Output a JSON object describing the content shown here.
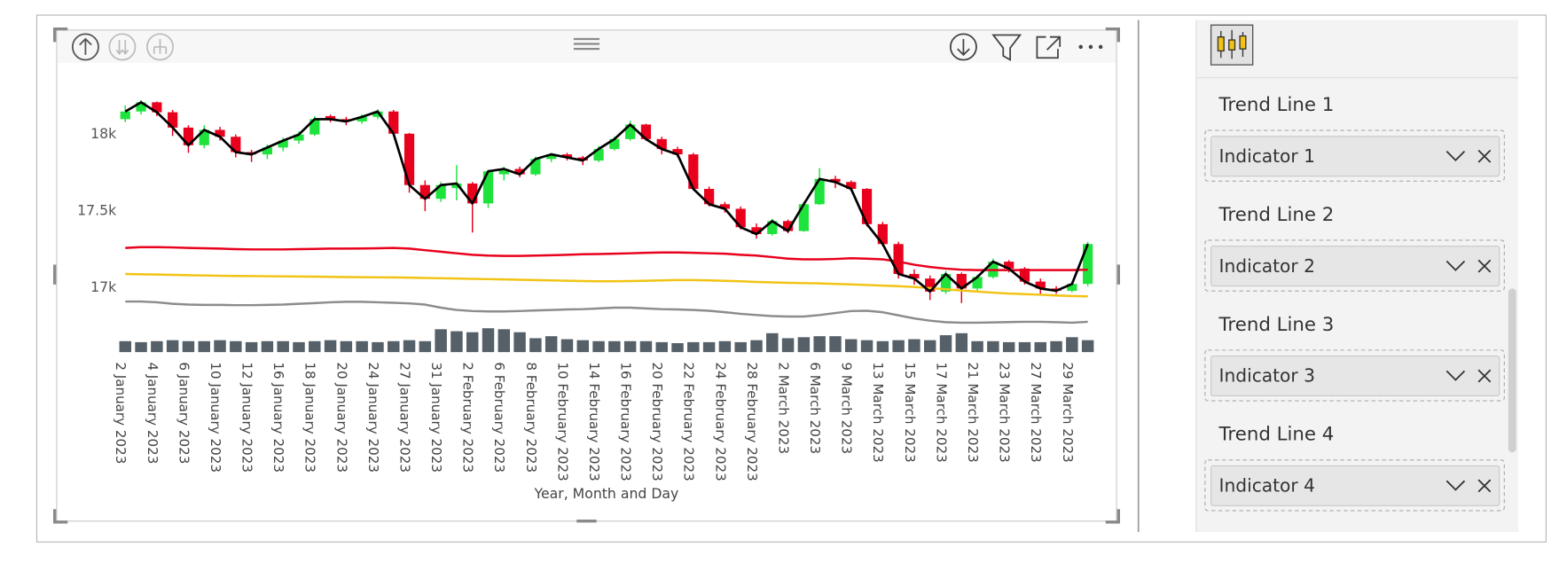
{
  "chart_data": {
    "type": "candlestick",
    "x_label": "Year, Month and Day",
    "categories": [
      "2 January 2023",
      null,
      "4 January 2023",
      null,
      "6 January 2023",
      null,
      "10 January 2023",
      null,
      "12 January 2023",
      null,
      "16 January 2023",
      null,
      "18 January 2023",
      null,
      "20 January 2023",
      null,
      "24 January 2023",
      null,
      "27 January 2023",
      null,
      "31 January 2023",
      null,
      "2 February 2023",
      null,
      "6 February 2023",
      null,
      "8 February 2023",
      null,
      "10 February 2023",
      null,
      "14 February 2023",
      null,
      "16 February 2023",
      null,
      "20 February 2023",
      null,
      "22 February 2023",
      null,
      "24 February 2023",
      null,
      "28 February 2023",
      null,
      "2 March 2023",
      null,
      "6 March 2023",
      null,
      "9 March 2023",
      null,
      "13 March 2023",
      null,
      "15 March 2023",
      null,
      "17 March 2023",
      null,
      "21 March 2023",
      null,
      "23 March 2023",
      null,
      "27 March 2023",
      null,
      "29 March 2023",
      null
    ],
    "open": [
      18100,
      18150,
      18210,
      18145,
      18045,
      17930,
      18030,
      17985,
      17885,
      17870,
      17915,
      17960,
      18000,
      18120,
      18100,
      18085,
      18115,
      18150,
      18005,
      17670,
      17580,
      17650,
      17680,
      17550,
      17740,
      17775,
      17740,
      17840,
      17870,
      17850,
      17830,
      17905,
      17970,
      18065,
      17970,
      17905,
      17870,
      17645,
      17545,
      17515,
      17395,
      17350,
      17435,
      17370,
      17545,
      17710,
      17690,
      17645,
      17415,
      17285,
      17090,
      17060,
      16975,
      17090,
      16995,
      17070,
      17170,
      17125,
      17040,
      16995,
      16980,
      17025
    ],
    "high": [
      18190,
      18225,
      18215,
      18160,
      18060,
      18060,
      18050,
      18000,
      17900,
      17935,
      17980,
      18020,
      18120,
      18130,
      18115,
      18130,
      18165,
      18160,
      18010,
      17700,
      17690,
      17800,
      17690,
      17770,
      17790,
      17790,
      17855,
      17880,
      17880,
      17860,
      17925,
      17985,
      18090,
      18070,
      17985,
      17920,
      17880,
      17660,
      17560,
      17530,
      17420,
      17450,
      17445,
      17560,
      17780,
      17730,
      17700,
      17650,
      17430,
      17300,
      17120,
      17080,
      17110,
      17100,
      17085,
      17190,
      17180,
      17135,
      17060,
      17010,
      17040,
      17300
    ],
    "low": [
      18080,
      18130,
      18120,
      17990,
      17880,
      17910,
      17960,
      17850,
      17820,
      17840,
      17890,
      17940,
      17990,
      18080,
      18060,
      18070,
      18100,
      17990,
      17620,
      17500,
      17560,
      17570,
      17360,
      17520,
      17700,
      17720,
      17730,
      17820,
      17830,
      17800,
      17820,
      17895,
      17960,
      17960,
      17870,
      17850,
      17640,
      17530,
      17490,
      17380,
      17320,
      17340,
      17355,
      17365,
      17540,
      17650,
      17630,
      17400,
      17270,
      17060,
      17020,
      16920,
      16960,
      16900,
      16980,
      17060,
      17100,
      17020,
      16960,
      16960,
      16970,
      17010
    ],
    "close": [
      18150,
      18210,
      18145,
      18045,
      17930,
      18030,
      17985,
      17885,
      17870,
      17915,
      17960,
      18000,
      18100,
      18100,
      18085,
      18115,
      18150,
      18005,
      17670,
      17580,
      17670,
      17680,
      17550,
      17760,
      17775,
      17740,
      17840,
      17870,
      17850,
      17830,
      17905,
      17970,
      18065,
      17970,
      17905,
      17870,
      17645,
      17545,
      17515,
      17395,
      17350,
      17435,
      17370,
      17545,
      17710,
      17690,
      17645,
      17415,
      17285,
      17090,
      17060,
      16975,
      17090,
      16995,
      17070,
      17170,
      17125,
      17040,
      16995,
      16980,
      17025,
      17285
    ],
    "up_color": "#1ee33c",
    "down_color": "#e8001c",
    "lines": [
      {
        "color": "#000000",
        "values": [
          18150,
          18210,
          18145,
          18045,
          17930,
          18030,
          17985,
          17885,
          17870,
          17915,
          17960,
          18000,
          18100,
          18100,
          18085,
          18115,
          18150,
          18005,
          17670,
          17580,
          17670,
          17680,
          17550,
          17760,
          17775,
          17740,
          17840,
          17870,
          17850,
          17830,
          17905,
          17970,
          18065,
          17970,
          17905,
          17870,
          17645,
          17545,
          17515,
          17395,
          17350,
          17435,
          17370,
          17545,
          17710,
          17690,
          17645,
          17415,
          17285,
          17090,
          17060,
          16975,
          17090,
          16995,
          17070,
          17170,
          17125,
          17040,
          16995,
          16980,
          17025,
          17285
        ]
      },
      {
        "color": "#e8001c",
        "values": [
          17260,
          17265,
          17265,
          17263,
          17260,
          17258,
          17255,
          17252,
          17250,
          17250,
          17250,
          17252,
          17253,
          17255,
          17255,
          17256,
          17258,
          17260,
          17255,
          17245,
          17235,
          17225,
          17215,
          17210,
          17208,
          17208,
          17210,
          17212,
          17215,
          17218,
          17220,
          17222,
          17225,
          17228,
          17230,
          17230,
          17228,
          17225,
          17222,
          17215,
          17210,
          17200,
          17190,
          17185,
          17185,
          17188,
          17192,
          17190,
          17185,
          17170,
          17150,
          17135,
          17125,
          17118,
          17115,
          17115,
          17115,
          17115,
          17115,
          17115,
          17115,
          17118
        ]
      },
      {
        "color": "#f2c314",
        "values": [
          17090,
          17088,
          17086,
          17084,
          17082,
          17080,
          17078,
          17077,
          17076,
          17075,
          17074,
          17073,
          17072,
          17071,
          17070,
          17069,
          17068,
          17067,
          17066,
          17064,
          17062,
          17060,
          17058,
          17056,
          17054,
          17052,
          17050,
          17048,
          17046,
          17044,
          17042,
          17042,
          17044,
          17046,
          17048,
          17050,
          17050,
          17048,
          17045,
          17042,
          17038,
          17035,
          17032,
          17030,
          17028,
          17025,
          17022,
          17018,
          17014,
          17010,
          17005,
          16998,
          16990,
          16982,
          16975,
          16968,
          16962,
          16958,
          16954,
          16950,
          16946,
          16944
        ]
      },
      {
        "color": "#8c8c8c",
        "values": [
          16910,
          16910,
          16905,
          16895,
          16890,
          16888,
          16888,
          16886,
          16886,
          16888,
          16890,
          16895,
          16900,
          16905,
          16908,
          16908,
          16905,
          16902,
          16898,
          16890,
          16870,
          16855,
          16848,
          16845,
          16845,
          16848,
          16852,
          16855,
          16858,
          16860,
          16865,
          16870,
          16870,
          16865,
          16860,
          16858,
          16855,
          16850,
          16840,
          16830,
          16822,
          16815,
          16812,
          16812,
          16822,
          16835,
          16848,
          16850,
          16840,
          16820,
          16800,
          16785,
          16775,
          16772,
          16772,
          16774,
          16776,
          16778,
          16778,
          16775,
          16772,
          16778
        ]
      }
    ],
    "volume": {
      "color": "#566068",
      "values": [
        11,
        10,
        11,
        12,
        11,
        11,
        12,
        11,
        10,
        11,
        11,
        10,
        11,
        12,
        11,
        11,
        10,
        11,
        12,
        11,
        23,
        21,
        20,
        24,
        23,
        20,
        14,
        16,
        13,
        12,
        11,
        11,
        11,
        11,
        10,
        9,
        10,
        10,
        11,
        10,
        12,
        19,
        14,
        15,
        16,
        16,
        13,
        12,
        11,
        12,
        13,
        12,
        17,
        19,
        11,
        11,
        10,
        10,
        10,
        11,
        15,
        12
      ]
    },
    "ylim": [
      16580,
      18260
    ],
    "yticks": [
      {
        "value": 17000,
        "label": "17k"
      },
      {
        "value": 17500,
        "label": "17.5k"
      },
      {
        "value": 18000,
        "label": "18k"
      }
    ],
    "grid": false
  },
  "panel": {
    "items": [
      {
        "label": "Trend Line 1",
        "value": "Indicator 1"
      },
      {
        "label": "Trend Line 2",
        "value": "Indicator 2"
      },
      {
        "label": "Trend Line 3",
        "value": "Indicator 3"
      },
      {
        "label": "Trend Line 4",
        "value": "Indicator 4"
      }
    ]
  }
}
